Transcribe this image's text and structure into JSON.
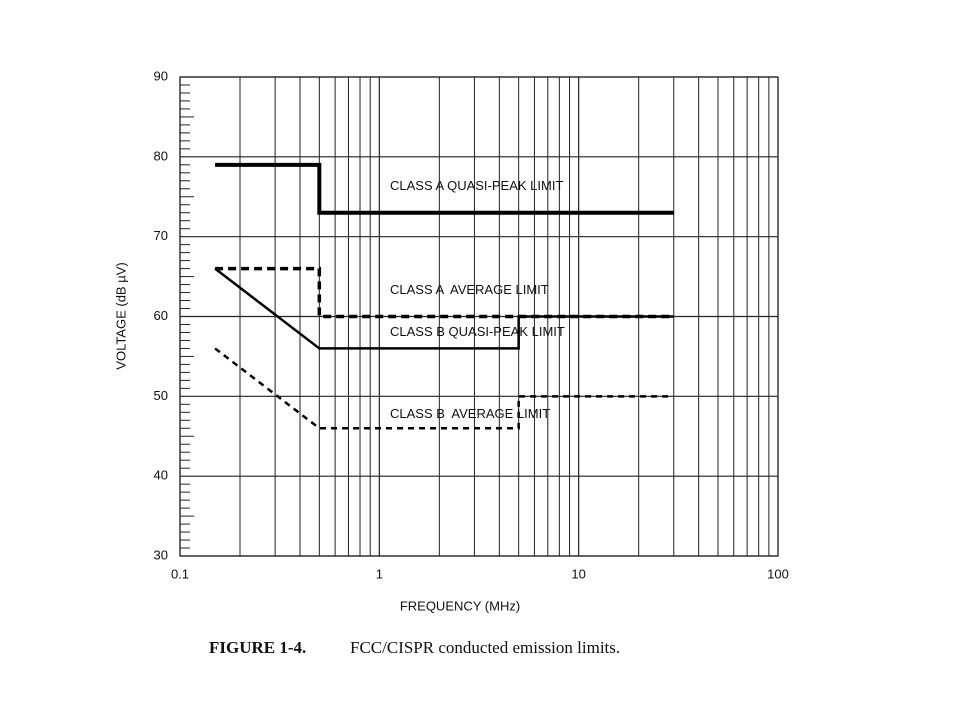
{
  "chart_data": {
    "type": "line",
    "figure_label": "FIGURE 1-4.",
    "title": "FCC/CISPR conducted emission limits.",
    "x_label": "FREQUENCY (MHz)",
    "y_label": "VOLTAGE (dB µV)",
    "x_scale": "log",
    "xlim": [
      0.1,
      100
    ],
    "xticks": [
      0.1,
      1,
      10,
      100
    ],
    "ylim": [
      30,
      90
    ],
    "yticks": [
      30,
      40,
      50,
      60,
      70,
      80,
      90
    ],
    "grid": true,
    "series": [
      {
        "name": "CLASS A QUASI-PEAK LIMIT",
        "color": "#000000",
        "dash": "none",
        "width": 4,
        "x": [
          0.15,
          0.5,
          0.5,
          30
        ],
        "values": [
          79,
          79,
          73,
          73
        ]
      },
      {
        "name": "CLASS A  AVERAGE LIMIT",
        "color": "#000000",
        "dash": "8 5",
        "width": 3.5,
        "x": [
          0.15,
          0.5,
          0.5,
          30
        ],
        "values": [
          66,
          66,
          60,
          60
        ]
      },
      {
        "name": "CLASS B QUASI-PEAK LIMIT",
        "color": "#000000",
        "dash": "none",
        "width": 2.5,
        "x": [
          0.15,
          0.5,
          5,
          5,
          30
        ],
        "values": [
          66,
          56,
          56,
          60,
          60
        ]
      },
      {
        "name": "CLASS B  AVERAGE LIMIT",
        "color": "#000000",
        "dash": "6 5",
        "width": 2.5,
        "x": [
          0.15,
          0.5,
          5,
          5,
          30
        ],
        "values": [
          56,
          46,
          46,
          50,
          50
        ]
      }
    ]
  }
}
